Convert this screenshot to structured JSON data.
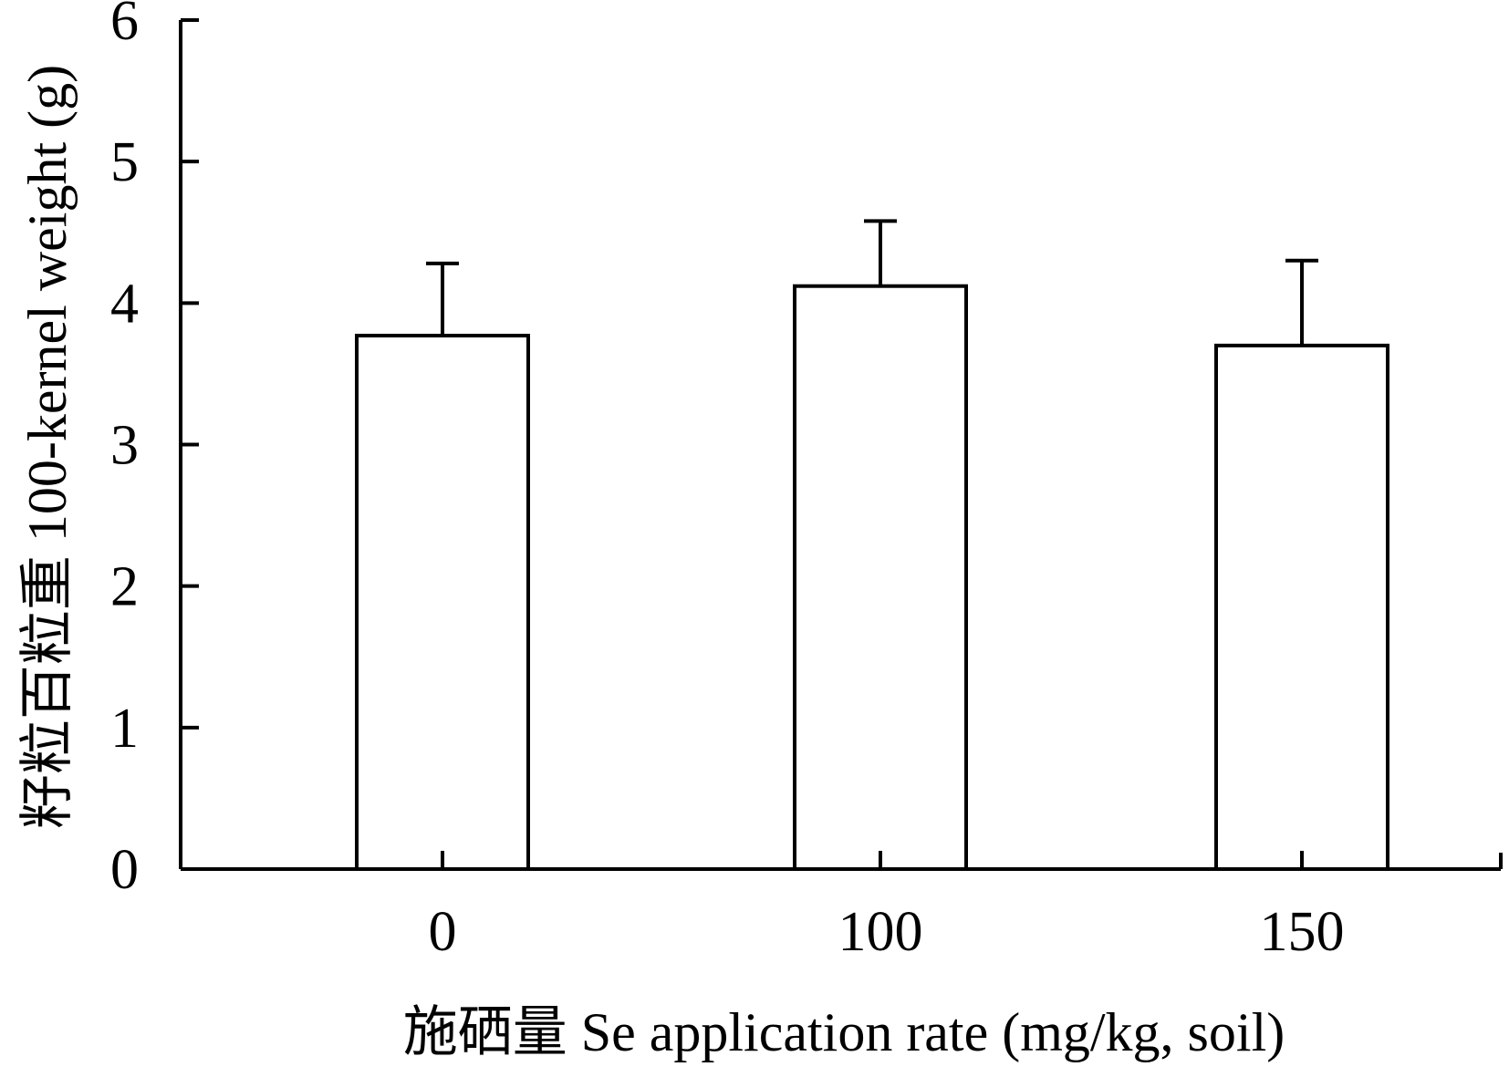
{
  "chart_data": {
    "type": "bar",
    "categories": [
      "0",
      "100",
      "150"
    ],
    "values": [
      3.77,
      4.12,
      3.7
    ],
    "error_bars": [
      0.51,
      0.46,
      0.6
    ],
    "xlabel": "施硒量 Se application rate (mg/kg, soil)",
    "ylabel": "籽粒百粒重 100-kernel weight (g)",
    "ylim": [
      0,
      6
    ],
    "yticks": [
      0,
      1,
      2,
      3,
      4,
      5,
      6
    ],
    "grid": false,
    "legend": "none",
    "bar_fill": "#ffffff",
    "stroke_color": "#000000"
  }
}
